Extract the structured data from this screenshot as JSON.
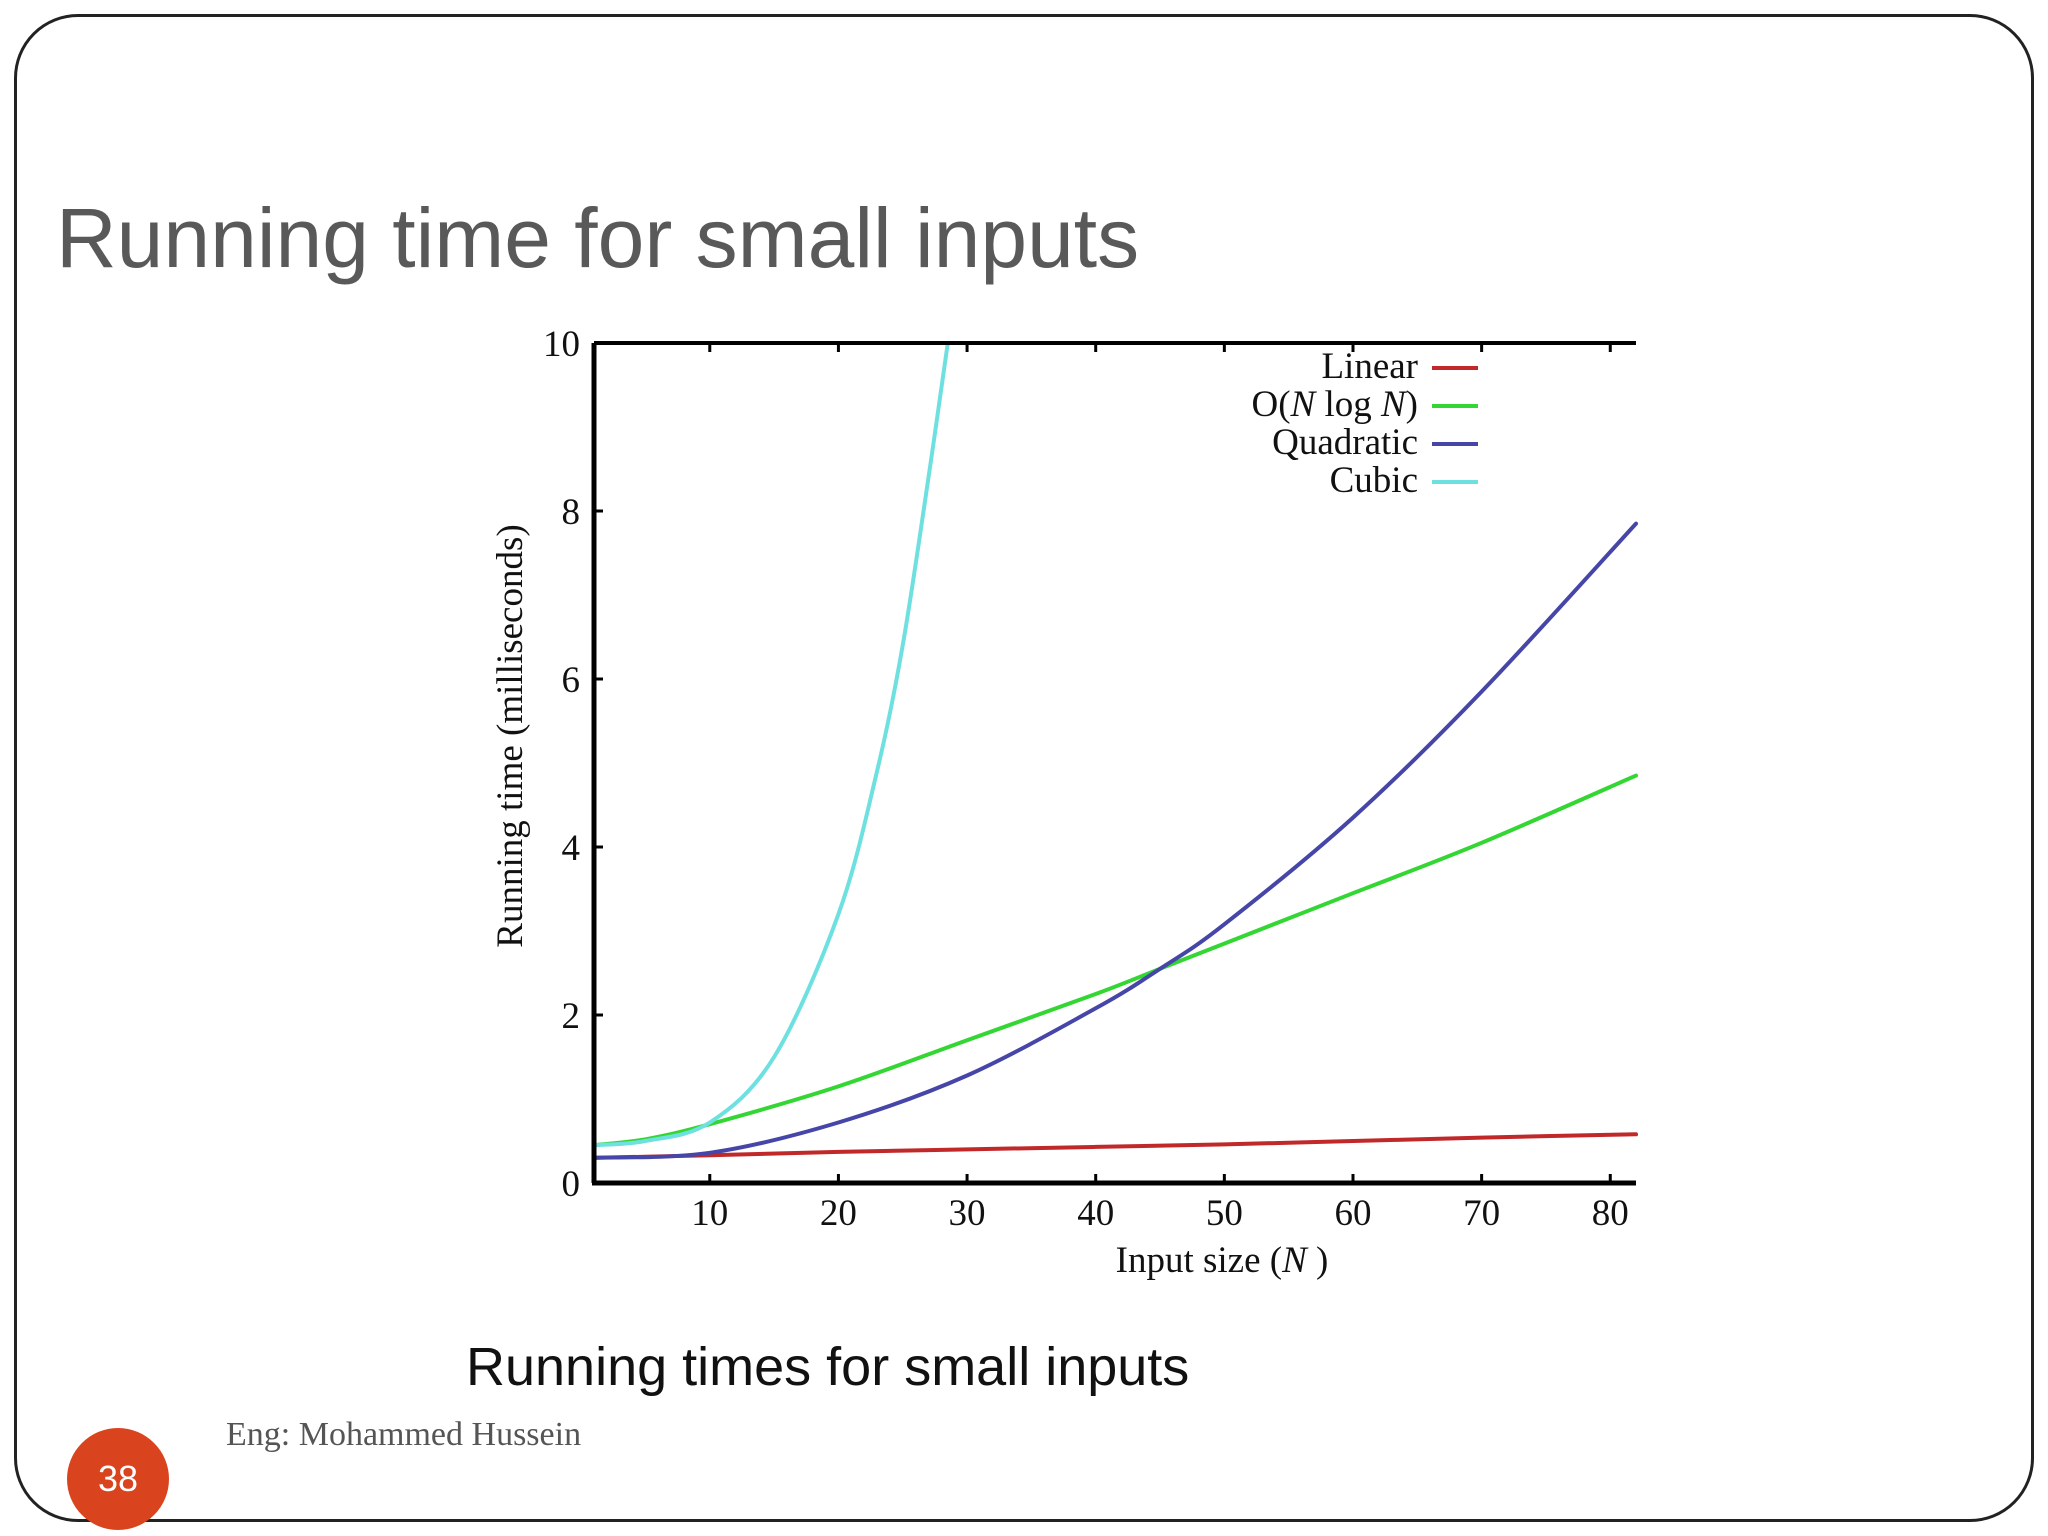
{
  "slide": {
    "title": "Running time for small inputs",
    "caption": "Running times for small inputs",
    "author": "Eng: Mohammed Hussein",
    "page_number": "38",
    "accent_color": "#d9441f"
  },
  "chart_data": {
    "type": "line",
    "title": "",
    "xlabel_parts": [
      "Input size (",
      "N",
      " )"
    ],
    "ylabel": "Running time (milliseconds)",
    "xlim": [
      1,
      82
    ],
    "ylim": [
      0,
      10
    ],
    "xticks": [
      10,
      20,
      30,
      40,
      50,
      60,
      70,
      80
    ],
    "yticks": [
      0,
      2,
      4,
      6,
      8,
      10
    ],
    "legend_position": "top-right",
    "series": [
      {
        "name": "Linear",
        "legend_parts": [
          "Linear"
        ],
        "color": "#c0282a",
        "x": [
          1,
          10,
          20,
          30,
          40,
          50,
          60,
          70,
          82
        ],
        "y": [
          0.3,
          0.33,
          0.37,
          0.4,
          0.43,
          0.46,
          0.5,
          0.54,
          0.58
        ]
      },
      {
        "name": "O(N log N)",
        "legend_parts": [
          "O(",
          "N",
          " log ",
          "N",
          ")"
        ],
        "color": "#33d633",
        "x": [
          1,
          5,
          10,
          20,
          30,
          40,
          45,
          50,
          60,
          70,
          82
        ],
        "y": [
          0.45,
          0.52,
          0.7,
          1.15,
          1.7,
          2.25,
          2.55,
          2.85,
          3.45,
          4.05,
          4.85
        ]
      },
      {
        "name": "Quadratic",
        "legend_parts": [
          "Quadratic"
        ],
        "color": "#4646a8",
        "x": [
          1,
          10,
          20,
          30,
          40,
          45,
          50,
          60,
          70,
          82
        ],
        "y": [
          0.3,
          0.36,
          0.72,
          1.28,
          2.08,
          2.55,
          3.08,
          4.35,
          5.85,
          7.85
        ]
      },
      {
        "name": "Cubic",
        "legend_parts": [
          "Cubic"
        ],
        "color": "#6ee0e0",
        "x": [
          1,
          5,
          10,
          15,
          20,
          23,
          25,
          27,
          28.5
        ],
        "y": [
          0.45,
          0.5,
          0.72,
          1.5,
          3.2,
          4.9,
          6.4,
          8.4,
          10.0
        ]
      }
    ]
  }
}
